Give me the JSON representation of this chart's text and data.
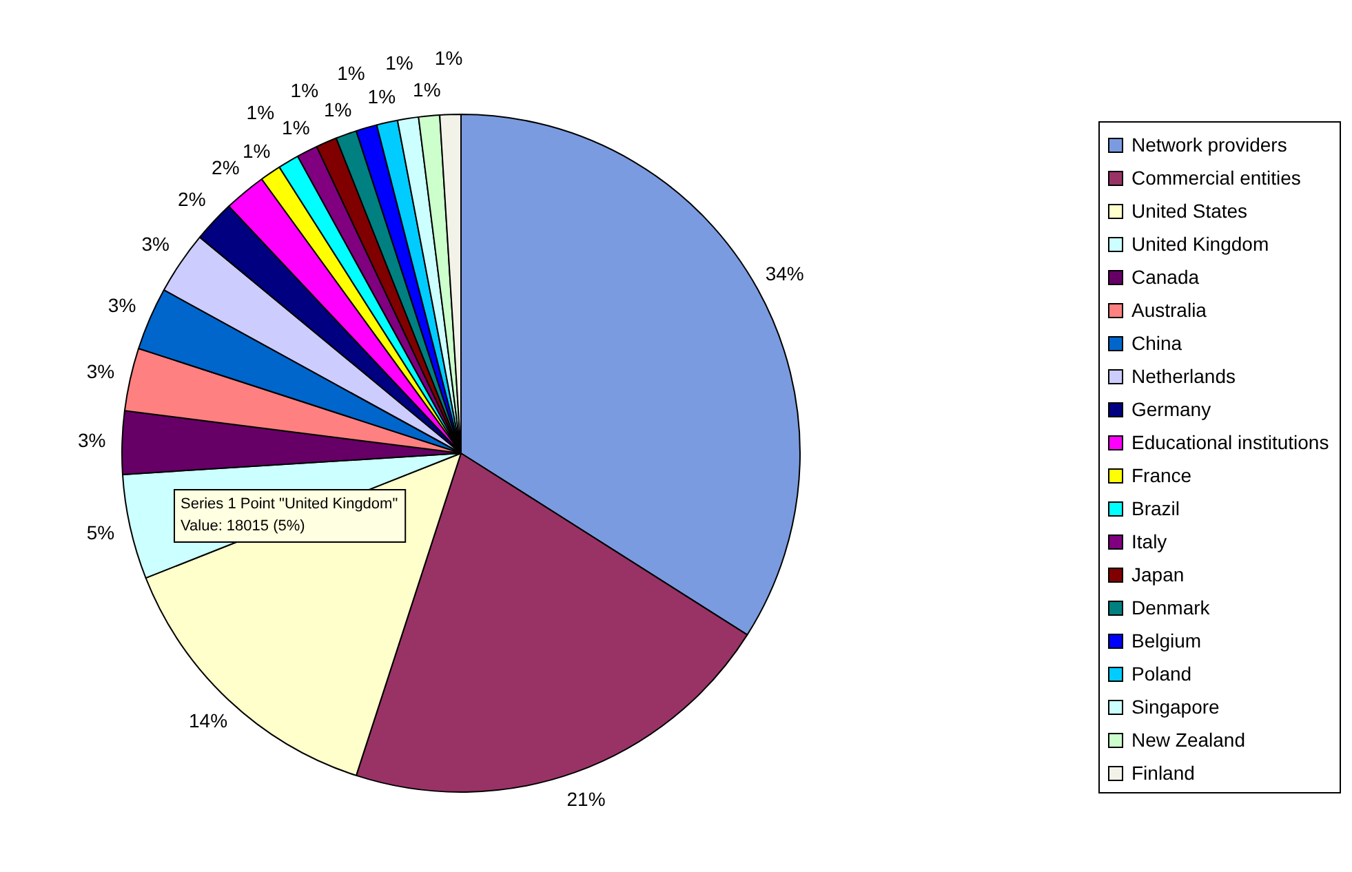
{
  "chart_data": {
    "type": "pie",
    "categories": [
      "Network providers",
      "Commercial entities",
      "United States",
      "United Kingdom",
      "Canada",
      "Australia",
      "China",
      "Netherlands",
      "Germany",
      "Educational institutions",
      "France",
      "Brazil",
      "Italy",
      "Japan",
      "Denmark",
      "Belgium",
      "Poland",
      "Singapore",
      "New Zealand",
      "Finland"
    ],
    "values": [
      34,
      21,
      14,
      5,
      3,
      3,
      3,
      3,
      2,
      2,
      1,
      1,
      1,
      1,
      1,
      1,
      1,
      1,
      1,
      1
    ],
    "value_labels": [
      "34%",
      "21%",
      "14%",
      "5%",
      "3%",
      "3%",
      "3%",
      "3%",
      "2%",
      "2%",
      "1%",
      "1%",
      "1%",
      "1%",
      "1%",
      "1%",
      "1%",
      "1%",
      "1%",
      "1%"
    ],
    "colors": [
      "#7b9be0",
      "#993366",
      "#ffffcc",
      "#ccffff",
      "#660066",
      "#ff8080",
      "#0066cc",
      "#ccccff",
      "#000080",
      "#ff00ff",
      "#ffff00",
      "#00ffff",
      "#800080",
      "#800000",
      "#008080",
      "#0000ff",
      "#00ccff",
      "#ccffff",
      "#ccffcc",
      "#f2f2e8"
    ],
    "legend": "right",
    "annotations": [
      "Series 1 Point \"United Kingdom\"\nValue: 18015 (5%)"
    ]
  }
}
